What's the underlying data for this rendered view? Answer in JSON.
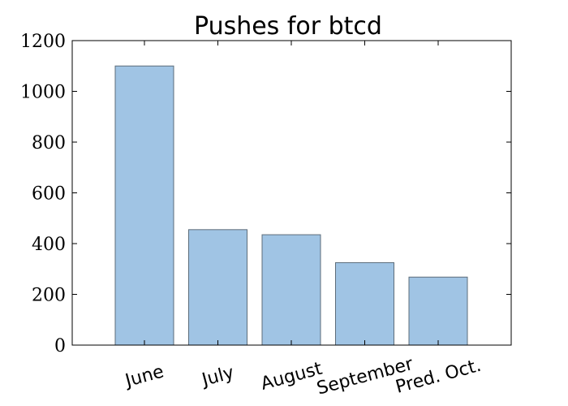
{
  "chart_data": {
    "type": "bar",
    "title": "Pushes for btcd",
    "xlabel": "",
    "ylabel": "",
    "categories": [
      "June",
      "July",
      "August",
      "September",
      "Pred. Oct."
    ],
    "values": [
      1100,
      455,
      435,
      325,
      268
    ],
    "ylim": [
      0,
      1200
    ],
    "yticks": [
      0,
      200,
      400,
      600,
      800,
      1000,
      1200
    ],
    "grid": false,
    "x_tick_rotation_deg": 15,
    "colors": {
      "bar_fill": "#a0c4e4",
      "bar_edge": "#5d6d7a",
      "axis": "#000000",
      "background": "#ffffff"
    }
  }
}
